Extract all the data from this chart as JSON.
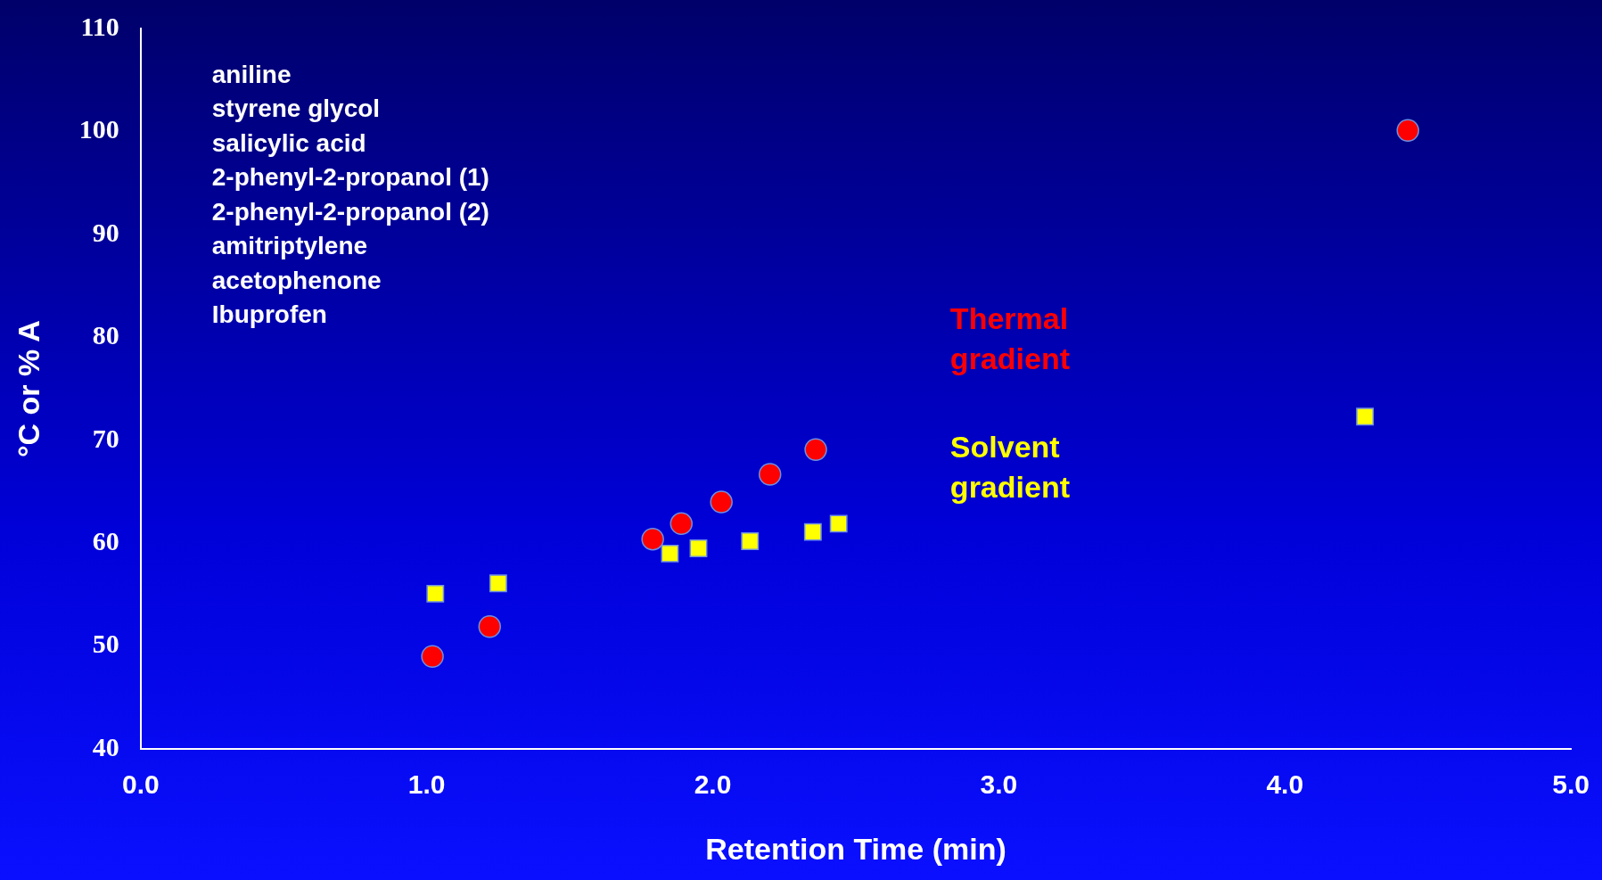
{
  "chart_data": {
    "type": "scatter",
    "xlabel": "Retention Time (min)",
    "ylabel": "°C or % A",
    "xlim": [
      0,
      5
    ],
    "xticks": [
      {
        "value": 0,
        "label": "0.0"
      },
      {
        "value": 1,
        "label": "1.0"
      },
      {
        "value": 2,
        "label": "2.0"
      },
      {
        "value": 3,
        "label": "3.0"
      },
      {
        "value": 4,
        "label": "4.0"
      },
      {
        "value": 5,
        "label": "5.0"
      }
    ],
    "ylim": [
      40,
      110
    ],
    "yticks": [
      40,
      50,
      60,
      70,
      80,
      90,
      100,
      110
    ],
    "grid": false,
    "legend": false,
    "annotations": [
      "aniline",
      "styrene glycol",
      "salicylic acid",
      "2-phenyl-2-propanol (1)",
      "2-phenyl-2-propanol (2)",
      "amitriptylene",
      "acetophenone",
      "Ibuprofen"
    ],
    "series": [
      {
        "name": "Thermal gradient",
        "color": "#ff0000",
        "marker": "circle",
        "x": [
          1.02,
          1.22,
          1.79,
          1.89,
          2.03,
          2.2,
          2.36,
          4.43
        ],
        "values": [
          49,
          51.9,
          60.4,
          61.9,
          64,
          66.7,
          69.1,
          100.1
        ]
      },
      {
        "name": "Solvent gradient",
        "color": "#ffff00",
        "marker": "square",
        "x": [
          1.03,
          1.25,
          1.85,
          1.95,
          2.13,
          2.35,
          2.44,
          4.28
        ],
        "values": [
          55.1,
          56.1,
          59,
          59.5,
          60.2,
          61.1,
          61.9,
          72.3
        ]
      }
    ]
  }
}
